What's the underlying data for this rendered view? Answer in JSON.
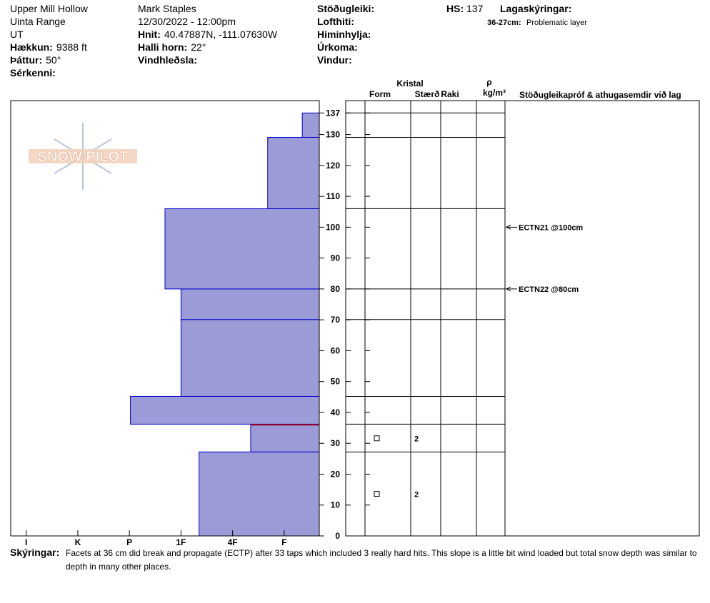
{
  "header": {
    "left": [
      "Upper Mill Hollow",
      "Uinta Range",
      "UT"
    ],
    "left_fields": [
      {
        "label": "Hækkun:",
        "value": "9388 ft"
      },
      {
        "label": "Þáttur:",
        "value": "50°"
      },
      {
        "label": "Sérkenni:",
        "value": ""
      }
    ],
    "observer": "Mark Staples",
    "datetime": "12/30/2022 - 12:00pm",
    "mid_fields": [
      {
        "label": "Hnit:",
        "value": "40.47887N, -111.07630W"
      },
      {
        "label": "Halli horn:",
        "value": "22°"
      },
      {
        "label": "Vindhleðsla:",
        "value": ""
      }
    ],
    "right_fields": [
      "Stöðugleiki:",
      "Lofthiti:",
      "Himinhylja:",
      "Úrkoma:",
      "Vindur:"
    ],
    "hs_label": "HS:",
    "hs_value": "137",
    "legend_title": "Lagaskýringar:",
    "problem_label": "36-27cm:",
    "problem_text": "Problematic layer"
  },
  "chart_data": {
    "type": "snow-profile",
    "logo": "SNOW PILOT",
    "ylim": [
      0,
      141
    ],
    "yticks": [
      0,
      10,
      20,
      30,
      40,
      50,
      60,
      70,
      80,
      90,
      100,
      110,
      120,
      130,
      137
    ],
    "xlim": [
      0.32,
      6.3
    ],
    "xticks": [
      {
        "value": 6,
        "label": "I"
      },
      {
        "value": 5,
        "label": "K"
      },
      {
        "value": 4,
        "label": "P"
      },
      {
        "value": 3,
        "label": "1F"
      },
      {
        "value": 2,
        "label": "4F"
      },
      {
        "value": 1,
        "label": "F"
      }
    ],
    "color": "#9b9bd7",
    "layers": [
      {
        "bottom": 0,
        "top": 27.2,
        "hardness": 2.65
      },
      {
        "bottom": 27.2,
        "top": 36.2,
        "hardness": 1.65
      },
      {
        "bottom": 36.2,
        "top": 45.2,
        "hardness": 3.98
      },
      {
        "bottom": 45.2,
        "top": 70.1,
        "hardness": 3
      },
      {
        "bottom": 70.1,
        "top": 80,
        "hardness": 3
      },
      {
        "bottom": 80,
        "top": 106,
        "hardness": 3.31
      },
      {
        "bottom": 106,
        "top": 129.1,
        "hardness": 1.32
      },
      {
        "bottom": 129.1,
        "top": 137,
        "hardness": 0.65
      }
    ],
    "problem_depth": 36,
    "crystal_header": "Kristal",
    "columns": [
      "Form",
      "Stærð",
      "Raki"
    ],
    "density_symbol": "ρ",
    "density_unit": "kg/m³",
    "tests_header": "Stöðugleikapróf & athugasemdir við lag",
    "crystals": [
      {
        "depth": 31.5,
        "size": "2"
      },
      {
        "depth": 13.5,
        "size": "2"
      }
    ],
    "tests": [
      {
        "depth": 100,
        "label": "ECTN21 @100cm"
      },
      {
        "depth": 80,
        "label": "ECTN22 @80cm"
      }
    ]
  },
  "footer": {
    "label": "Skýringar:",
    "lines": [
      "Facets at 36 cm did break and propagate (ECTP) after 33 taps which included 3 really hard hits. This slope is a little bit wind loaded but total snow depth was similar to",
      "depth in many other places."
    ]
  }
}
